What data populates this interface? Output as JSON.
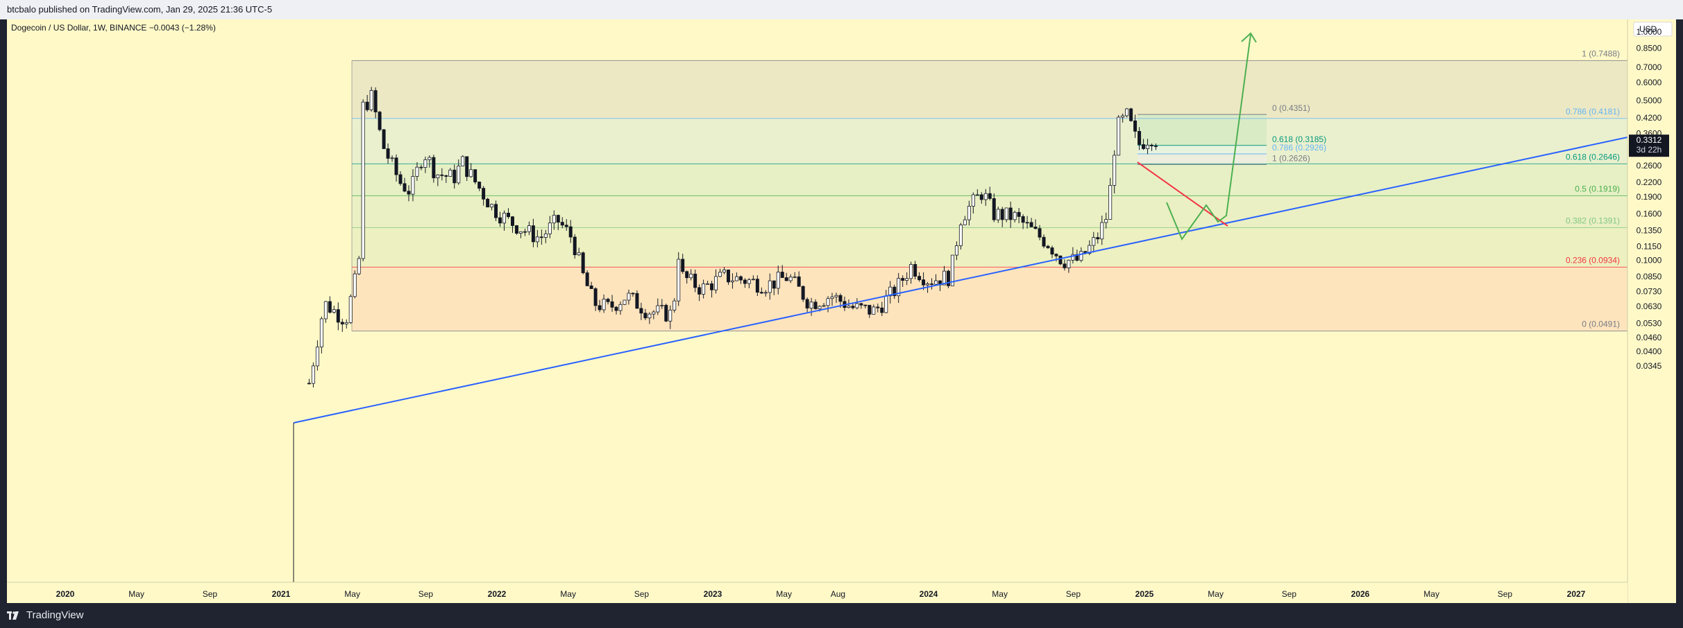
{
  "header": {
    "publisher": "btcbalo published on TradingView.com, Jan 29, 2025 21:36 UTC-5"
  },
  "footer": {
    "brand": "TradingView"
  },
  "chart_data": {
    "type": "candlestick",
    "title": "Dogecoin / US Dollar, 1W, BINANCE",
    "change": "−0.0043 (−1.28%)",
    "currency": "USD",
    "price_scale": "log",
    "y_ticks": [
      "1.0000",
      "0.8500",
      "0.7000",
      "0.6000",
      "0.5000",
      "0.4200",
      "0.3600",
      "0.2600",
      "0.2200",
      "0.1900",
      "0.1600",
      "0.1350",
      "0.1150",
      "0.1000",
      "0.0850",
      "0.0730",
      "0.0630",
      "0.0530",
      "0.0460",
      "0.0400",
      "0.0345"
    ],
    "x_ticks": [
      "2020",
      "May",
      "Sep",
      "2021",
      "May",
      "Sep",
      "2022",
      "May",
      "Sep",
      "2023",
      "May",
      "Aug",
      "2024",
      "May",
      "Sep",
      "2025",
      "May",
      "Sep",
      "2026",
      "May",
      "Sep",
      "2027"
    ],
    "last_price": {
      "value": "0.3312",
      "countdown": "3d 22h"
    },
    "fib_main": [
      {
        "label": "1 (0.7488)",
        "value": 0.7488,
        "color": "#787b86"
      },
      {
        "label": "0.786 (0.4181)",
        "value": 0.4181,
        "color": "#64b5f6"
      },
      {
        "label": "0.618 (0.2646)",
        "value": 0.2646,
        "color": "#089981"
      },
      {
        "label": "0.5 (0.1919)",
        "value": 0.1919,
        "color": "#4caf50"
      },
      {
        "label": "0.382 (0.1391)",
        "value": 0.1391,
        "color": "#81c784"
      },
      {
        "label": "0.236 (0.0934)",
        "value": 0.0934,
        "color": "#f23645"
      },
      {
        "label": "0 (0.0491)",
        "value": 0.0491,
        "color": "#787b86"
      }
    ],
    "fib_small": [
      {
        "label": "0 (0.4351)",
        "value": 0.4351,
        "color": "#787b86"
      },
      {
        "label": "0.618 (0.3185)",
        "value": 0.3185,
        "color": "#089981"
      },
      {
        "label": "0.786 (0.2926)",
        "value": 0.2926,
        "color": "#64b5f6"
      },
      {
        "label": "1 (0.2626)",
        "value": 0.2626,
        "color": "#787b86"
      }
    ],
    "anchors": [
      {
        "year": 2021.13,
        "close": 0.029
      },
      {
        "year": 2021.2,
        "close": 0.065
      },
      {
        "year": 2021.3,
        "close": 0.055
      },
      {
        "year": 2021.36,
        "close": 0.095
      },
      {
        "year": 2021.38,
        "close": 0.47
      },
      {
        "year": 2021.42,
        "close": 0.52
      },
      {
        "year": 2021.47,
        "close": 0.32
      },
      {
        "year": 2021.55,
        "close": 0.22
      },
      {
        "year": 2021.6,
        "close": 0.2
      },
      {
        "year": 2021.66,
        "close": 0.3
      },
      {
        "year": 2021.72,
        "close": 0.24
      },
      {
        "year": 2021.8,
        "close": 0.23
      },
      {
        "year": 2021.84,
        "close": 0.27
      },
      {
        "year": 2021.9,
        "close": 0.22
      },
      {
        "year": 2021.98,
        "close": 0.17
      },
      {
        "year": 2022.05,
        "close": 0.15
      },
      {
        "year": 2022.13,
        "close": 0.135
      },
      {
        "year": 2022.2,
        "close": 0.125
      },
      {
        "year": 2022.28,
        "close": 0.15
      },
      {
        "year": 2022.35,
        "close": 0.125
      },
      {
        "year": 2022.4,
        "close": 0.085
      },
      {
        "year": 2022.45,
        "close": 0.065
      },
      {
        "year": 2022.52,
        "close": 0.062
      },
      {
        "year": 2022.6,
        "close": 0.07
      },
      {
        "year": 2022.7,
        "close": 0.06
      },
      {
        "year": 2022.82,
        "close": 0.058
      },
      {
        "year": 2022.83,
        "close": 0.125
      },
      {
        "year": 2022.86,
        "close": 0.085
      },
      {
        "year": 2022.95,
        "close": 0.075
      },
      {
        "year": 2023.05,
        "close": 0.085
      },
      {
        "year": 2023.15,
        "close": 0.082
      },
      {
        "year": 2023.25,
        "close": 0.078
      },
      {
        "year": 2023.35,
        "close": 0.085
      },
      {
        "year": 2023.45,
        "close": 0.065
      },
      {
        "year": 2023.55,
        "close": 0.07
      },
      {
        "year": 2023.65,
        "close": 0.062
      },
      {
        "year": 2023.75,
        "close": 0.06
      },
      {
        "year": 2023.85,
        "close": 0.075
      },
      {
        "year": 2023.92,
        "close": 0.095
      },
      {
        "year": 2024.0,
        "close": 0.082
      },
      {
        "year": 2024.1,
        "close": 0.085
      },
      {
        "year": 2024.15,
        "close": 0.155
      },
      {
        "year": 2024.25,
        "close": 0.2
      },
      {
        "year": 2024.3,
        "close": 0.16
      },
      {
        "year": 2024.4,
        "close": 0.155
      },
      {
        "year": 2024.5,
        "close": 0.13
      },
      {
        "year": 2024.55,
        "close": 0.12
      },
      {
        "year": 2024.62,
        "close": 0.1
      },
      {
        "year": 2024.7,
        "close": 0.1
      },
      {
        "year": 2024.78,
        "close": 0.125
      },
      {
        "year": 2024.83,
        "close": 0.16
      },
      {
        "year": 2024.87,
        "close": 0.38
      },
      {
        "year": 2024.92,
        "close": 0.43
      },
      {
        "year": 2024.97,
        "close": 0.32
      },
      {
        "year": 2025.03,
        "close": 0.35
      },
      {
        "year": 2025.07,
        "close": 0.33
      }
    ]
  }
}
